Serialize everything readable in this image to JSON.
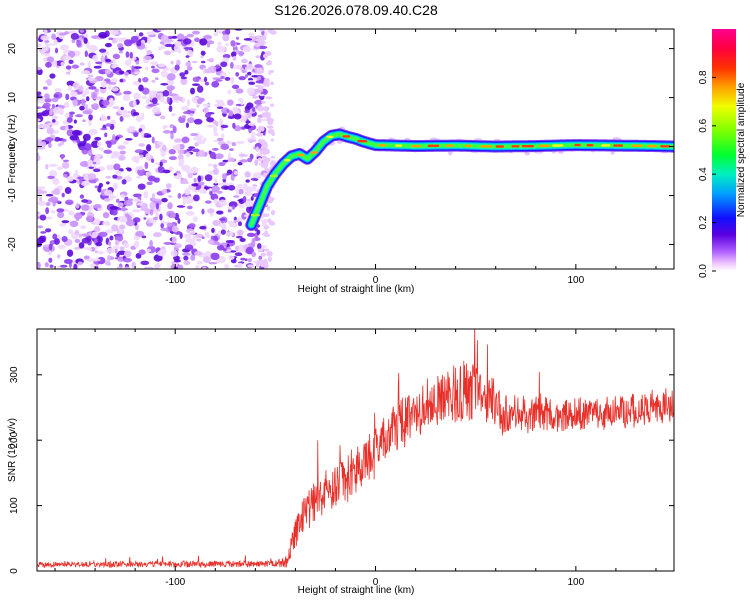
{
  "title": "S126.2026.078.09.40.C28",
  "chart_data": [
    {
      "type": "heatmap",
      "name": "spectrogram",
      "xlabel": "Height of straight line (km)",
      "ylabel": "Frequency (Hz)",
      "xlim": [
        -169,
        149
      ],
      "ylim": [
        -25,
        24
      ],
      "xticks": [
        -100,
        0,
        100
      ],
      "yticks": [
        -20,
        -10,
        0,
        10,
        20
      ],
      "xtick_labels": [
        "-100",
        "0",
        "100"
      ],
      "ytick_labels": [
        "-20",
        "-10",
        "0",
        "10",
        "20"
      ],
      "noise_region_x": [
        -169,
        -55
      ],
      "trace": {
        "x": [
          -62,
          -58,
          -54,
          -50,
          -46,
          -42,
          -38,
          -34,
          -30,
          -26,
          -22,
          -18,
          -14,
          -10,
          -6,
          0,
          20,
          40,
          60,
          80,
          100,
          120,
          140,
          149
        ],
        "freq": [
          -16,
          -12,
          -8,
          -5.5,
          -3.5,
          -2,
          -1.5,
          -2.5,
          -1,
          1,
          2.2,
          2.5,
          2,
          1.6,
          1,
          0.3,
          0.1,
          0.2,
          0,
          0.1,
          0.3,
          0.2,
          0.1,
          0
        ]
      },
      "colorbar": {
        "label": "Normalized spectral amplitude",
        "range": [
          0,
          1
        ],
        "ticks": [
          0.0,
          0.2,
          0.4,
          0.6,
          0.8
        ],
        "tick_labels": [
          "0.0",
          "0.2",
          "0.4",
          "0.6",
          "0.8"
        ]
      }
    },
    {
      "type": "line",
      "name": "snr",
      "xlabel": "Height of straight line (km)",
      "ylabel": "SNR (10 * v/v)",
      "xlim": [
        -169,
        149
      ],
      "ylim": [
        0,
        370
      ],
      "xticks": [
        -100,
        0,
        100
      ],
      "yticks": [
        0,
        100,
        200,
        300
      ],
      "xtick_labels": [
        "-100",
        "0",
        "100"
      ],
      "ytick_labels": [
        "0",
        "100",
        "200",
        "300"
      ],
      "color": "#e8302a",
      "envelope": {
        "x": [
          -169,
          -50,
          -44,
          -40,
          -35,
          -30,
          -25,
          -20,
          -15,
          -10,
          -5,
          0,
          5,
          10,
          15,
          20,
          25,
          30,
          35,
          40,
          45,
          50,
          55,
          60,
          62,
          65,
          70,
          80,
          100,
          120,
          140,
          149
        ],
        "mean": [
          10,
          11,
          15,
          60,
          90,
          110,
          120,
          130,
          140,
          150,
          165,
          185,
          205,
          220,
          235,
          245,
          255,
          260,
          265,
          270,
          275,
          270,
          265,
          260,
          250,
          235,
          245,
          240,
          240,
          245,
          250,
          255
        ],
        "amp": [
          4,
          5,
          10,
          25,
          30,
          32,
          32,
          34,
          35,
          35,
          35,
          35,
          35,
          35,
          35,
          35,
          35,
          38,
          40,
          45,
          45,
          40,
          35,
          35,
          35,
          30,
          30,
          28,
          25,
          25,
          25,
          25
        ]
      }
    }
  ]
}
